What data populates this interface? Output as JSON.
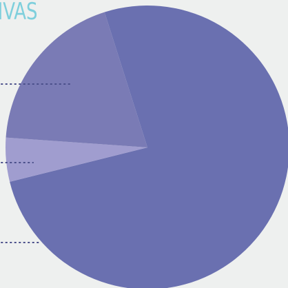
{
  "chart_data": {
    "type": "pie",
    "title": "IVAS",
    "categories": [
      null,
      null,
      null
    ],
    "values": [
      76,
      5,
      19
    ],
    "colors": [
      "#6a70b0",
      "#a09dcf",
      "#7a7bb5"
    ]
  }
}
